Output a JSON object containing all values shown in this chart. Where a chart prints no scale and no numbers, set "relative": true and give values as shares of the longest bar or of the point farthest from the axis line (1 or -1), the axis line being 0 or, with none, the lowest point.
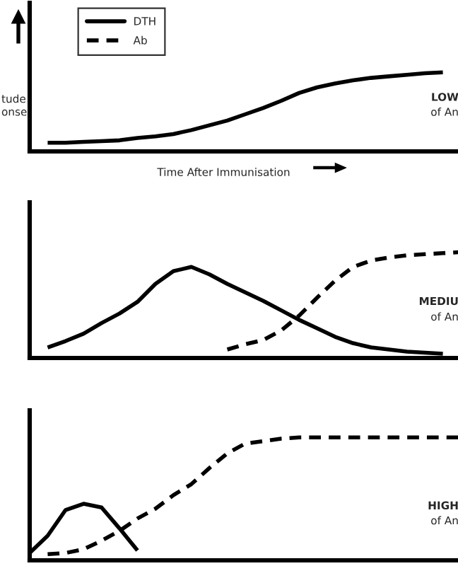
{
  "chart_data": [
    {
      "type": "line",
      "relative": true,
      "legend": "top left",
      "xlabel": "Time After Immunisation",
      "ylabel": "tude\nonse",
      "annotations": [
        "LOW",
        "of An"
      ],
      "categories": [
        null,
        null,
        null,
        null,
        null,
        null,
        null,
        null,
        null,
        null,
        null,
        null,
        null,
        null,
        null,
        null,
        null,
        null,
        null,
        null,
        null,
        null,
        null,
        null,
        null
      ],
      "series": [
        {
          "name": "DTH",
          "color": "#000000",
          "line_style": "solid",
          "values": [
            null,
            0.11,
            0.11,
            0.12,
            0.13,
            0.14,
            0.17,
            0.19,
            0.22,
            0.27,
            0.33,
            0.39,
            0.47,
            0.55,
            0.64,
            0.74,
            0.81,
            0.86,
            0.9,
            0.93,
            0.95,
            0.97,
            0.99,
            1,
            null
          ]
        }
      ]
    },
    {
      "type": "line",
      "relative": true,
      "annotations": [
        "MEDIU",
        "of An"
      ],
      "categories": [
        null,
        null,
        null,
        null,
        null,
        null,
        null,
        null,
        null,
        null,
        null,
        null,
        null,
        null,
        null,
        null,
        null,
        null,
        null,
        null,
        null,
        null,
        null,
        null,
        null
      ],
      "series": [
        {
          "color": "#000000",
          "line_style": "solid",
          "values": [
            null,
            0.1,
            0.16,
            0.23,
            0.33,
            0.42,
            0.53,
            0.7,
            0.82,
            0.86,
            0.79,
            0.7,
            0.62,
            0.54,
            0.45,
            0.36,
            0.28,
            0.2,
            0.14,
            0.1,
            0.08,
            0.06,
            0.05,
            0.04,
            null
          ]
        },
        {
          "name": "Ab",
          "color": "#000000",
          "line_style": "dashed",
          "values": [
            null,
            null,
            null,
            null,
            null,
            null,
            null,
            null,
            null,
            null,
            null,
            0.08,
            0.13,
            0.17,
            0.26,
            0.4,
            0.57,
            0.73,
            0.86,
            0.92,
            0.95,
            0.97,
            0.98,
            0.99,
            1
          ]
        }
      ]
    },
    {
      "type": "line",
      "relative": true,
      "annotations": [
        "HIGH",
        "of An"
      ],
      "categories": [
        null,
        null,
        null,
        null,
        null,
        null,
        null,
        null,
        null,
        null,
        null,
        null,
        null,
        null,
        null,
        null,
        null,
        null,
        null,
        null,
        null,
        null,
        null,
        null,
        null
      ],
      "series": [
        {
          "color": "#000000",
          "line_style": "solid",
          "values": [
            0.06,
            0.2,
            0.41,
            0.46,
            0.43,
            0.26,
            0.08,
            null,
            null,
            null,
            null,
            null,
            null,
            null,
            null,
            null,
            null,
            null,
            null,
            null,
            null,
            null,
            null,
            null,
            null
          ]
        },
        {
          "color": "#000000",
          "line_style": "dashed",
          "values": [
            null,
            0.05,
            0.06,
            0.09,
            0.16,
            0.24,
            0.34,
            0.42,
            0.53,
            0.62,
            0.75,
            0.87,
            0.95,
            0.97,
            0.99,
            1,
            1,
            1,
            1,
            1,
            1,
            1,
            1,
            1,
            1
          ]
        }
      ]
    }
  ]
}
